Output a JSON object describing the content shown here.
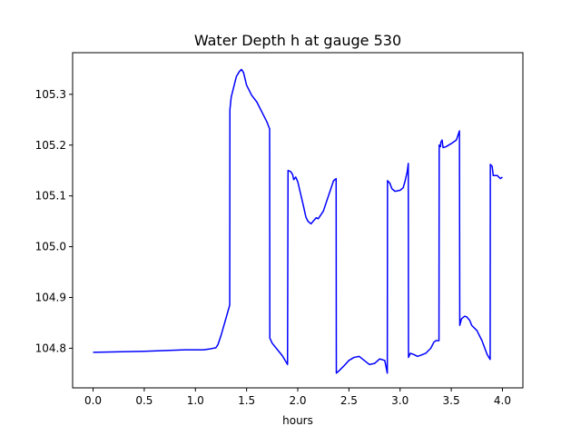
{
  "chart_data": {
    "type": "line",
    "title": "Water Depth h at gauge 530",
    "xlabel": "hours",
    "ylabel": "",
    "xlim": [
      -0.2,
      4.2
    ],
    "ylim": [
      104.722,
      105.382
    ],
    "xticks": [
      0.0,
      0.5,
      1.0,
      1.5,
      2.0,
      2.5,
      3.0,
      3.5,
      4.0
    ],
    "xtick_labels": [
      "0.0",
      "0.5",
      "1.0",
      "1.5",
      "2.0",
      "2.5",
      "3.0",
      "3.5",
      "4.0"
    ],
    "yticks": [
      104.8,
      104.9,
      105.0,
      105.1,
      105.2,
      105.3
    ],
    "ytick_labels": [
      "104.8",
      "104.9",
      "105.0",
      "105.1",
      "105.2",
      "105.3"
    ],
    "grid": false,
    "series": [
      {
        "color": "#0000ff",
        "x": [
          0.0,
          0.5,
          0.9,
          1.0,
          1.08,
          1.15,
          1.2,
          1.22,
          1.25,
          1.3,
          1.335,
          1.337,
          1.35,
          1.4,
          1.43,
          1.45,
          1.47,
          1.5,
          1.55,
          1.6,
          1.65,
          1.7,
          1.725,
          1.727,
          1.75,
          1.85,
          1.9,
          1.905,
          1.93,
          1.95,
          1.96,
          1.98,
          2.0,
          2.05,
          2.08,
          2.1,
          2.13,
          2.15,
          2.18,
          2.2,
          2.25,
          2.3,
          2.35,
          2.375,
          2.377,
          2.4,
          2.45,
          2.5,
          2.55,
          2.6,
          2.65,
          2.7,
          2.75,
          2.8,
          2.85,
          2.875,
          2.877,
          2.9,
          2.92,
          2.95,
          3.0,
          3.03,
          3.05,
          3.07,
          3.08,
          3.082,
          3.1,
          3.13,
          3.17,
          3.2,
          3.25,
          3.3,
          3.33,
          3.35,
          3.36,
          3.38,
          3.382,
          3.395,
          3.397,
          3.41,
          3.42,
          3.45,
          3.5,
          3.55,
          3.58,
          3.583,
          3.6,
          3.63,
          3.65,
          3.68,
          3.7,
          3.75,
          3.8,
          3.85,
          3.88,
          3.882,
          3.9,
          3.91,
          3.95,
          3.98,
          4.0
        ],
        "y": [
          104.792,
          104.794,
          104.797,
          104.797,
          104.797,
          104.799,
          104.801,
          104.807,
          104.825,
          104.86,
          104.885,
          105.27,
          105.295,
          105.335,
          105.345,
          105.349,
          105.343,
          105.318,
          105.298,
          105.285,
          105.265,
          105.245,
          105.232,
          104.82,
          104.81,
          104.785,
          104.768,
          105.15,
          105.148,
          105.142,
          105.132,
          105.137,
          105.128,
          105.085,
          105.058,
          105.05,
          105.045,
          105.05,
          105.057,
          105.055,
          105.07,
          105.1,
          105.13,
          105.134,
          104.751,
          104.755,
          104.765,
          104.776,
          104.782,
          104.784,
          104.776,
          104.768,
          104.77,
          104.779,
          104.776,
          104.751,
          105.13,
          105.125,
          105.114,
          105.109,
          105.111,
          105.116,
          105.13,
          105.148,
          105.164,
          104.782,
          104.79,
          104.788,
          104.784,
          104.786,
          104.79,
          104.8,
          104.812,
          104.815,
          104.815,
          104.815,
          105.2,
          105.197,
          105.205,
          105.21,
          105.195,
          105.197,
          105.203,
          105.21,
          105.228,
          104.845,
          104.858,
          104.863,
          104.862,
          104.855,
          104.845,
          104.835,
          104.815,
          104.788,
          104.778,
          105.162,
          105.158,
          105.14,
          105.14,
          105.134,
          105.137
        ]
      }
    ]
  }
}
